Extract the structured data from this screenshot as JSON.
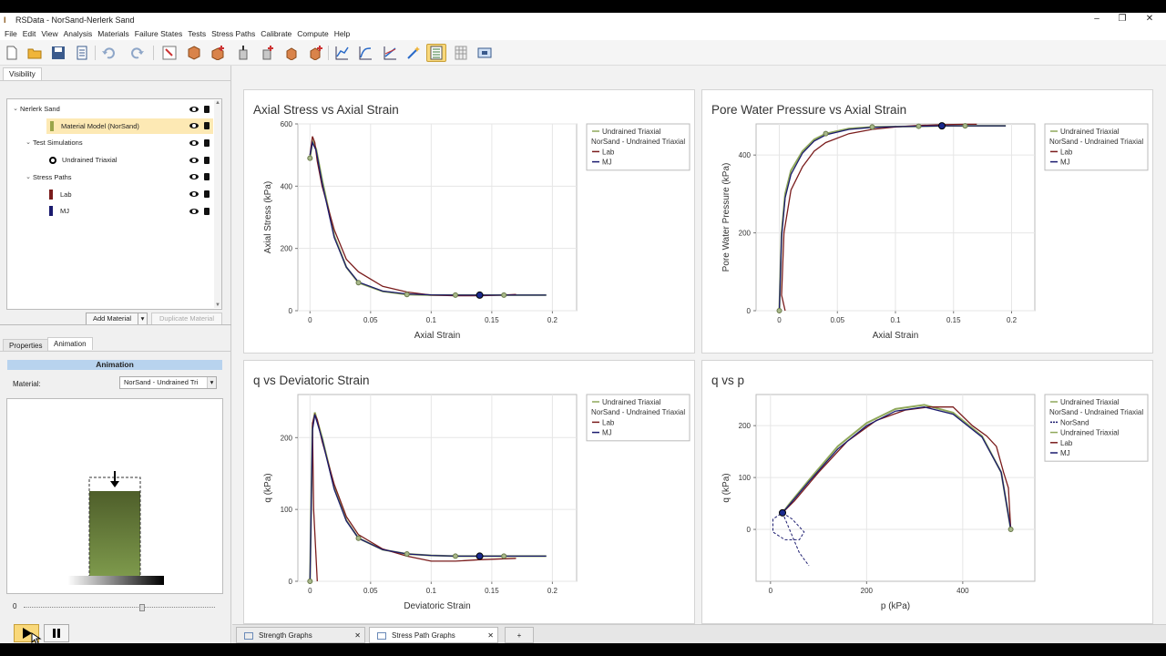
{
  "window": {
    "title": "RSData - NorSand-Nerlerk Sand",
    "controls": [
      "–",
      "❐",
      "✕"
    ]
  },
  "menu": [
    "File",
    "Edit",
    "View",
    "Analysis",
    "Materials",
    "Failure States",
    "Tests",
    "Stress Paths",
    "Calibrate",
    "Compute",
    "Help"
  ],
  "toolbar": {
    "icons": [
      "new-file-icon",
      "open-folder-icon",
      "save-icon",
      "properties-icon",
      "undo-icon",
      "redo-icon",
      "select-icon",
      "material-icon",
      "add-material-icon",
      "test-icon",
      "add-test-icon",
      "stress-path-icon",
      "add-stress-path-icon",
      "fit-icon",
      "curve-icon",
      "wand-icon",
      "calibrate-icon",
      "table-icon",
      "compute-icon"
    ],
    "active_index": 16
  },
  "visibility": {
    "tab": "Visibility",
    "tree": [
      {
        "label": "Nerlerk Sand",
        "level": 0,
        "twisty": "⌄",
        "selected": false,
        "swatch": ""
      },
      {
        "label": "Material Model (NorSand)",
        "level": 1,
        "twisty": "",
        "selected": true,
        "swatch": "#9aa54a"
      },
      {
        "label": "Test Simulations",
        "level": 1,
        "twisty": "⌄",
        "selected": false,
        "swatch": ""
      },
      {
        "label": "Undrained Triaxial",
        "level": 2,
        "twisty": "",
        "selected": false,
        "swatch": ""
      },
      {
        "label": "Stress Paths",
        "level": 1,
        "twisty": "⌄",
        "selected": false,
        "swatch": ""
      },
      {
        "label": "Lab",
        "level": 2,
        "twisty": "",
        "selected": false,
        "swatch": "#7a1c1c"
      },
      {
        "label": "MJ",
        "level": 2,
        "twisty": "",
        "selected": false,
        "swatch": "#1a1a6e"
      }
    ],
    "add_material": "Add Material",
    "duplicate_material": "Duplicate Material"
  },
  "lower_tabs": [
    "Properties",
    "Animation"
  ],
  "animation": {
    "header": "Animation",
    "material_label": "Material:",
    "material_value": "NorSand - Undrained Tri",
    "slider_min_label": "0",
    "slider_value": 0.62
  },
  "graphs": [
    {
      "title": "Axial Stress vs Axial Strain",
      "xlabel": "Axial Strain",
      "ylabel": "Axial Stress (kPa)",
      "xticks": [
        "0",
        "0.05",
        "0.1",
        "0.15",
        "0.2"
      ],
      "yticks": [
        "0",
        "200",
        "400",
        "600"
      ],
      "legend": [
        "Undrained Triaxial",
        "NorSand - Undrained Triaxial",
        "Lab",
        "MJ"
      ]
    },
    {
      "title": "Pore Water Pressure vs Axial Strain",
      "xlabel": "Axial Strain",
      "ylabel": "Pore Water Pressure (kPa)",
      "xticks": [
        "0",
        "0.05",
        "0.1",
        "0.15",
        "0.2"
      ],
      "yticks": [
        "0",
        "200",
        "400"
      ],
      "legend": [
        "Undrained Triaxial",
        "NorSand - Undrained Triaxial",
        "Lab",
        "MJ"
      ]
    },
    {
      "title": "q vs Deviatoric Strain",
      "xlabel": "Deviatoric Strain",
      "ylabel": "q (kPa)",
      "xticks": [
        "0",
        "0.05",
        "0.1",
        "0.15",
        "0.2"
      ],
      "yticks": [
        "0",
        "100",
        "200"
      ],
      "legend": [
        "Undrained Triaxial",
        "NorSand - Undrained Triaxial",
        "Lab",
        "MJ"
      ]
    },
    {
      "title": "q vs p",
      "xlabel": "p (kPa)",
      "ylabel": "q (kPa)",
      "xticks": [
        "0",
        "200",
        "400"
      ],
      "yticks": [
        "0",
        "100",
        "200"
      ],
      "legend": [
        "Undrained Triaxial",
        "NorSand - Undrained Triaxial",
        "NorSand",
        "Undrained Triaxial",
        "Lab",
        "MJ"
      ]
    }
  ],
  "bottom_tabs": [
    {
      "label": "Strength Graphs",
      "active": false
    },
    {
      "label": "Stress Path Graphs",
      "active": true
    }
  ],
  "bottom_add": "+",
  "colors": {
    "model": "#8fa85a",
    "lab": "#7a1c1c",
    "mj": "#1a1a6e",
    "accent": "#f9d87a"
  },
  "chart_data": [
    {
      "type": "line",
      "title": "Axial Stress vs Axial Strain",
      "xlabel": "Axial Strain",
      "ylabel": "Axial Stress (kPa)",
      "xlim": [
        -0.01,
        0.22
      ],
      "ylim": [
        0,
        600
      ],
      "series": [
        {
          "name": "Undrained Triaxial",
          "x": [
            0,
            0.002,
            0.005,
            0.01,
            0.02,
            0.03,
            0.04,
            0.06,
            0.08,
            0.1,
            0.12,
            0.14,
            0.16,
            0.18,
            0.195
          ],
          "y": [
            490,
            545,
            520,
            420,
            240,
            140,
            90,
            62,
            52,
            50,
            50,
            50,
            50,
            50,
            50
          ]
        },
        {
          "name": "Lab",
          "x": [
            0,
            0.002,
            0.004,
            0.006,
            0.01,
            0.02,
            0.03,
            0.04,
            0.06,
            0.08,
            0.1,
            0.12,
            0.14,
            0.16,
            0.17
          ],
          "y": [
            500,
            560,
            540,
            480,
            400,
            260,
            165,
            125,
            78,
            60,
            50,
            48,
            48,
            50,
            52
          ]
        },
        {
          "name": "MJ",
          "x": [
            0,
            0.002,
            0.005,
            0.01,
            0.02,
            0.03,
            0.04,
            0.06,
            0.08,
            0.1,
            0.12,
            0.14,
            0.16,
            0.18,
            0.195
          ],
          "y": [
            500,
            540,
            515,
            410,
            235,
            140,
            92,
            63,
            54,
            51,
            50,
            50,
            50,
            50,
            50
          ]
        }
      ],
      "points": {
        "x": [
          0,
          0.04,
          0.08,
          0.12,
          0.16
        ],
        "y": [
          490,
          90,
          52,
          50,
          50
        ]
      },
      "marker": {
        "x": 0.14,
        "y": 50
      }
    },
    {
      "type": "line",
      "title": "Pore Water Pressure vs Axial Strain",
      "xlabel": "Axial Strain",
      "ylabel": "Pore Water Pressure (kPa)",
      "xlim": [
        -0.02,
        0.22
      ],
      "ylim": [
        0,
        480
      ],
      "series": [
        {
          "name": "Undrained Triaxial",
          "x": [
            0,
            0.002,
            0.005,
            0.01,
            0.02,
            0.03,
            0.04,
            0.06,
            0.08,
            0.1,
            0.12,
            0.14,
            0.16,
            0.18,
            0.195
          ],
          "y": [
            0,
            200,
            300,
            360,
            410,
            440,
            455,
            468,
            472,
            473,
            474,
            475,
            475,
            475,
            475
          ]
        },
        {
          "name": "Lab",
          "x": [
            0.005,
            0.002,
            0.004,
            0.01,
            0.02,
            0.03,
            0.04,
            0.06,
            0.08,
            0.1,
            0.12,
            0.14,
            0.16,
            0.17
          ],
          "y": [
            0,
            40,
            200,
            310,
            370,
            410,
            432,
            455,
            466,
            472,
            476,
            478,
            479,
            479
          ]
        },
        {
          "name": "MJ",
          "x": [
            0,
            0.002,
            0.005,
            0.01,
            0.02,
            0.03,
            0.04,
            0.06,
            0.08,
            0.1,
            0.12,
            0.14,
            0.16,
            0.18,
            0.195
          ],
          "y": [
            0,
            190,
            290,
            350,
            405,
            436,
            452,
            466,
            471,
            473,
            474,
            475,
            475,
            475,
            475
          ]
        }
      ],
      "points": {
        "x": [
          0,
          0.04,
          0.08,
          0.12,
          0.16
        ],
        "y": [
          0,
          455,
          472,
          474,
          475
        ]
      },
      "marker": {
        "x": 0.14,
        "y": 475
      }
    },
    {
      "type": "line",
      "title": "q vs Deviatoric Strain",
      "xlabel": "Deviatoric Strain",
      "ylabel": "q (kPa)",
      "xlim": [
        -0.01,
        0.22
      ],
      "ylim": [
        0,
        260
      ],
      "series": [
        {
          "name": "Undrained Triaxial",
          "x": [
            0,
            0.002,
            0.004,
            0.01,
            0.02,
            0.03,
            0.04,
            0.06,
            0.08,
            0.1,
            0.12,
            0.14,
            0.16,
            0.18,
            0.195
          ],
          "y": [
            0,
            215,
            235,
            200,
            130,
            85,
            60,
            44,
            38,
            36,
            35,
            35,
            35,
            35,
            35
          ]
        },
        {
          "name": "Lab",
          "x": [
            0.006,
            0.003,
            0.002,
            0.004,
            0.006,
            0.01,
            0.02,
            0.03,
            0.04,
            0.06,
            0.08,
            0.1,
            0.12,
            0.14,
            0.17
          ],
          "y": [
            0,
            100,
            220,
            232,
            225,
            195,
            135,
            90,
            65,
            45,
            35,
            28,
            28,
            30,
            32
          ]
        },
        {
          "name": "MJ",
          "x": [
            0,
            0.002,
            0.004,
            0.01,
            0.02,
            0.03,
            0.04,
            0.06,
            0.08,
            0.1,
            0.12,
            0.14,
            0.16,
            0.18,
            0.195
          ],
          "y": [
            0,
            210,
            232,
            198,
            128,
            84,
            60,
            44,
            38,
            36,
            35,
            35,
            35,
            35,
            35
          ]
        }
      ],
      "points": {
        "x": [
          0,
          0.04,
          0.08,
          0.12,
          0.16
        ],
        "y": [
          0,
          60,
          38,
          35,
          35
        ]
      },
      "marker": {
        "x": 0.14,
        "y": 35
      }
    },
    {
      "type": "line",
      "title": "q vs p",
      "xlabel": "p (kPa)",
      "ylabel": "q (kPa)",
      "xlim": [
        -30,
        550
      ],
      "ylim": [
        -100,
        260
      ],
      "series": [
        {
          "name": "Undrained Triaxial",
          "x": [
            500,
            480,
            440,
            380,
            320,
            260,
            200,
            140,
            80,
            40,
            25
          ],
          "y": [
            0,
            110,
            180,
            225,
            240,
            232,
            205,
            160,
            95,
            50,
            32
          ]
        },
        {
          "name": "NorSand",
          "x": [
            25,
            45,
            70,
            60,
            30,
            5,
            5,
            25,
            60,
            80
          ],
          "y": [
            32,
            20,
            -5,
            -20,
            -20,
            -5,
            20,
            32,
            -45,
            -70
          ]
        },
        {
          "name": "Lab",
          "x": [
            500,
            495,
            485,
            470,
            450,
            420,
            380,
            330,
            280,
            220,
            160,
            100,
            50,
            25
          ],
          "y": [
            0,
            80,
            110,
            160,
            180,
            200,
            236,
            236,
            230,
            210,
            170,
            110,
            55,
            32
          ]
        },
        {
          "name": "MJ",
          "x": [
            500,
            480,
            440,
            380,
            320,
            260,
            200,
            140,
            80,
            40,
            25
          ],
          "y": [
            0,
            110,
            178,
            222,
            236,
            228,
            200,
            155,
            92,
            48,
            32
          ]
        }
      ],
      "points": {
        "x": [
          500,
          25
        ],
        "y": [
          0,
          32
        ]
      },
      "marker": {
        "x": 25,
        "y": 32
      }
    }
  ]
}
